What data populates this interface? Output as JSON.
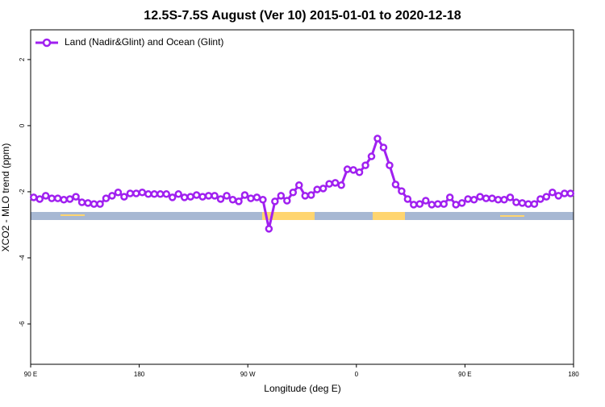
{
  "chart_data": {
    "type": "line",
    "title": "12.5S-7.5S August (Ver 10)   2015-01-01 to 2020-12-18",
    "x_label": "Longitude (deg E)",
    "y_label": "XCO2 - MLO trend (ppm)",
    "x": [
      92.5,
      97.5,
      102.5,
      107.5,
      112.5,
      117.5,
      122.5,
      127.5,
      132.5,
      137.5,
      142.5,
      147.5,
      152.5,
      157.5,
      162.5,
      167.5,
      172.5,
      177.5,
      182.5,
      187.5,
      192.5,
      197.5,
      202.5,
      207.5,
      212.5,
      217.5,
      222.5,
      227.5,
      232.5,
      237.5,
      242.5,
      247.5,
      252.5,
      257.5,
      262.5,
      267.5,
      272.5,
      277.5,
      282.5,
      287.5,
      292.5,
      297.5,
      302.5,
      307.5,
      312.5,
      317.5,
      322.5,
      327.5,
      332.5,
      337.5,
      342.5,
      347.5,
      352.5,
      357.5,
      362.5,
      367.5,
      372.5,
      377.5,
      382.5,
      387.5,
      392.5,
      397.5,
      402.5,
      407.5,
      412.5,
      417.5,
      422.5,
      427.5,
      432.5,
      437.5,
      442.5,
      447.5,
      452.5,
      457.5,
      462.5,
      467.5,
      472.5,
      477.5,
      482.5,
      487.5,
      492.5,
      497.5,
      502.5,
      507.5,
      512.5,
      517.5,
      522.5,
      527.5,
      532.5,
      537.5
    ],
    "series": [
      {
        "name": "Land (Nadir&Glint) and Ocean (Glint)",
        "color": "#a020f0",
        "values": [
          -2.17,
          -2.22,
          -2.12,
          -2.2,
          -2.2,
          -2.24,
          -2.22,
          -2.15,
          -2.32,
          -2.34,
          -2.37,
          -2.37,
          -2.2,
          -2.12,
          -2.02,
          -2.15,
          -2.05,
          -2.05,
          -2.02,
          -2.07,
          -2.07,
          -2.07,
          -2.07,
          -2.17,
          -2.07,
          -2.17,
          -2.15,
          -2.1,
          -2.15,
          -2.12,
          -2.12,
          -2.22,
          -2.12,
          -2.24,
          -2.29,
          -2.1,
          -2.2,
          -2.17,
          -2.24,
          -3.12,
          -2.29,
          -2.12,
          -2.27,
          -2.02,
          -1.8,
          -2.12,
          -2.1,
          -1.93,
          -1.9,
          -1.76,
          -1.73,
          -1.8,
          -1.32,
          -1.34,
          -1.41,
          -1.2,
          -0.93,
          -0.39,
          -0.66,
          -1.2,
          -1.78,
          -1.98,
          -2.22,
          -2.39,
          -2.37,
          -2.27,
          -2.39,
          -2.37,
          -2.37,
          -2.17,
          -2.39,
          -2.34,
          -2.22,
          -2.24,
          -2.15,
          -2.2,
          -2.2,
          -2.24,
          -2.24,
          -2.17,
          -2.32,
          -2.34,
          -2.37,
          -2.37,
          -2.22,
          -2.15,
          -2.02,
          -2.12,
          -2.05,
          -2.05
        ]
      }
    ],
    "xlim": [
      90,
      540
    ],
    "xticks": [
      {
        "value": 90,
        "label": "90 E"
      },
      180,
      {
        "value": 270,
        "label": "90 W"
      },
      {
        "value": 360,
        "label": "0"
      },
      {
        "value": 450,
        "label": "90 E"
      },
      {
        "value": 540,
        "label": "180"
      }
    ],
    "ylim": [
      -7.22,
      2.9
    ],
    "yticks": [
      -6,
      -4,
      -2,
      0,
      2
    ],
    "legend": "top-left"
  }
}
